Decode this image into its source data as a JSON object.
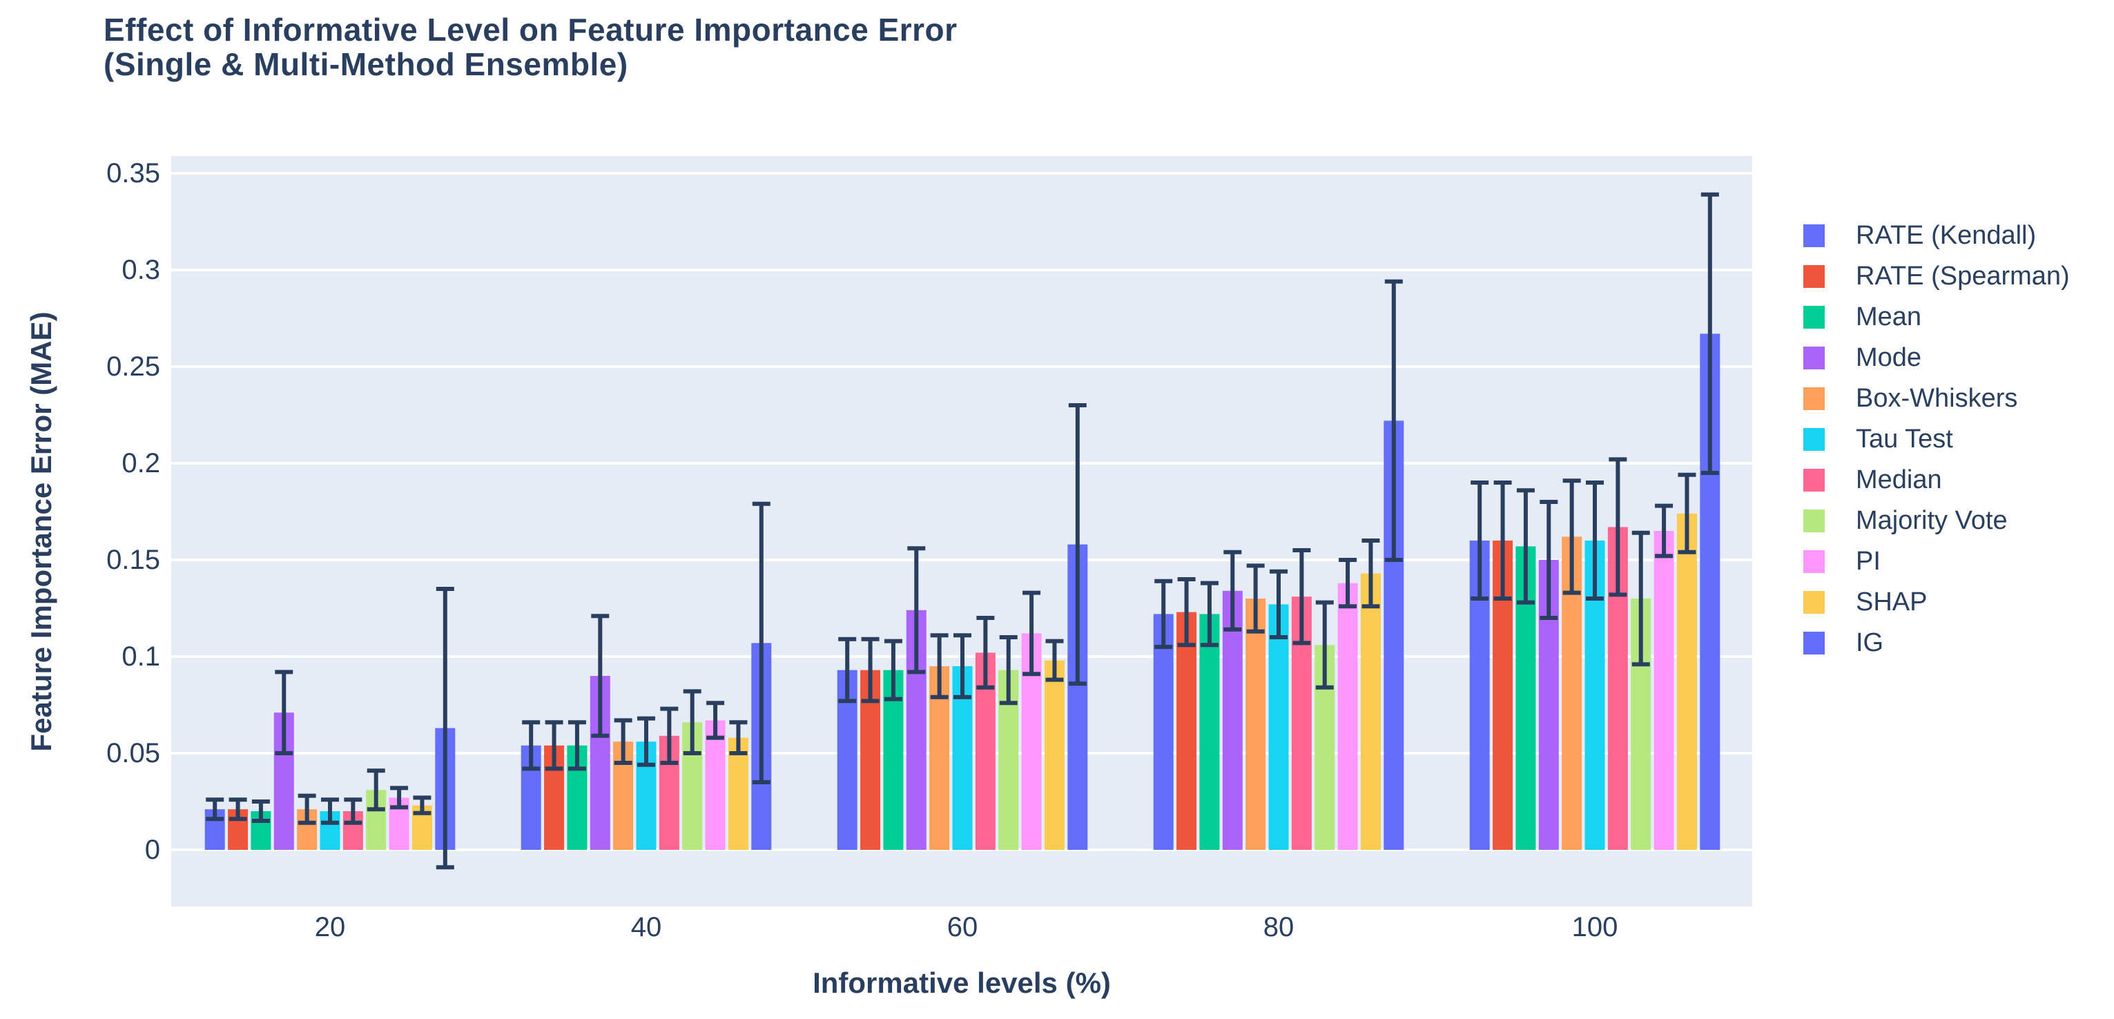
{
  "title": {
    "line1": "Effect of Informative Level on Feature Importance Error",
    "line2": "(Single & Multi-Method Ensemble)"
  },
  "colors": {
    "text": "#2a3f5f",
    "plot_background": "#e5ecf6",
    "gridline": "#ffffff",
    "error_bar": "#2a3f5f",
    "page_background": "#ffffff"
  },
  "chart_data": {
    "type": "bar",
    "title": "Effect of Informative Level on Feature Importance Error (Single & Multi-Method Ensemble)",
    "xlabel": "Informative levels (%)",
    "ylabel": "Feature Importance Error (MAE)",
    "categories": [
      "20",
      "40",
      "60",
      "80",
      "100"
    ],
    "yticks": [
      0,
      0.05,
      0.1,
      0.15,
      0.2,
      0.25,
      0.3,
      0.35
    ],
    "ylim": [
      -0.029,
      0.359
    ],
    "grid": true,
    "legend_position": "right",
    "error_bars": true,
    "series": [
      {
        "name": "RATE (Kendall)",
        "color": "#636EFA",
        "values": [
          0.021,
          0.054,
          0.093,
          0.122,
          0.16
        ],
        "errors": [
          0.005,
          0.012,
          0.016,
          0.017,
          0.03
        ]
      },
      {
        "name": "RATE (Spearman)",
        "color": "#EF553B",
        "values": [
          0.021,
          0.054,
          0.093,
          0.123,
          0.16
        ],
        "errors": [
          0.005,
          0.012,
          0.016,
          0.017,
          0.03
        ]
      },
      {
        "name": "Mean",
        "color": "#00CC96",
        "values": [
          0.02,
          0.054,
          0.093,
          0.122,
          0.157
        ],
        "errors": [
          0.005,
          0.012,
          0.015,
          0.016,
          0.029
        ]
      },
      {
        "name": "Mode",
        "color": "#AB63FA",
        "values": [
          0.071,
          0.09,
          0.124,
          0.134,
          0.15
        ],
        "errors": [
          0.021,
          0.031,
          0.032,
          0.02,
          0.03
        ]
      },
      {
        "name": "Box-Whiskers",
        "color": "#FFA15A",
        "values": [
          0.021,
          0.056,
          0.095,
          0.13,
          0.162
        ],
        "errors": [
          0.007,
          0.011,
          0.016,
          0.017,
          0.029
        ]
      },
      {
        "name": "Tau Test",
        "color": "#19D3F3",
        "values": [
          0.02,
          0.056,
          0.095,
          0.127,
          0.16
        ],
        "errors": [
          0.006,
          0.012,
          0.016,
          0.017,
          0.03
        ]
      },
      {
        "name": "Median",
        "color": "#FF6692",
        "values": [
          0.02,
          0.059,
          0.102,
          0.131,
          0.167
        ],
        "errors": [
          0.006,
          0.014,
          0.018,
          0.024,
          0.035
        ]
      },
      {
        "name": "Majority Vote",
        "color": "#B6E880",
        "values": [
          0.031,
          0.066,
          0.093,
          0.106,
          0.13
        ],
        "errors": [
          0.01,
          0.016,
          0.017,
          0.022,
          0.034
        ]
      },
      {
        "name": "PI",
        "color": "#FF97FF",
        "values": [
          0.027,
          0.067,
          0.112,
          0.138,
          0.165
        ],
        "errors": [
          0.005,
          0.009,
          0.021,
          0.012,
          0.013
        ]
      },
      {
        "name": "SHAP",
        "color": "#FECB52",
        "values": [
          0.023,
          0.058,
          0.098,
          0.143,
          0.174
        ],
        "errors": [
          0.004,
          0.008,
          0.01,
          0.017,
          0.02
        ]
      },
      {
        "name": "IG",
        "color": "#636EFA",
        "values": [
          0.063,
          0.107,
          0.158,
          0.222,
          0.267
        ],
        "errors": [
          0.072,
          0.072,
          0.072,
          0.072,
          0.072
        ]
      }
    ]
  }
}
